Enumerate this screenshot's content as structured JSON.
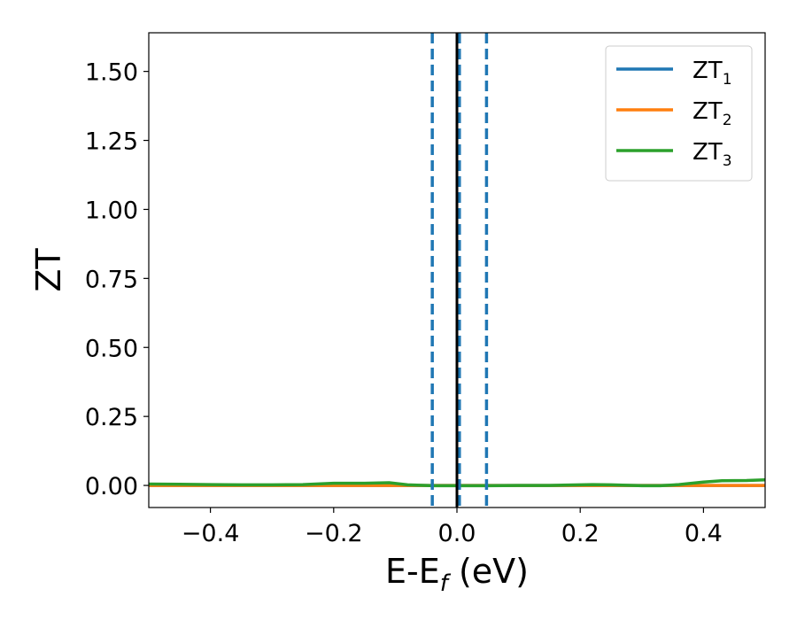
{
  "chart_data": {
    "type": "line",
    "xlabel_main": "E-E",
    "xlabel_sub": "f",
    "xlabel_unit": " (eV)",
    "ylabel": "ZT",
    "xlim": [
      -0.5,
      0.5
    ],
    "ylim": [
      -0.08,
      1.64
    ],
    "x_ticks": [
      -0.4,
      -0.2,
      0.0,
      0.2,
      0.4
    ],
    "x_tick_labels": [
      "−0.4",
      "−0.2",
      "0.0",
      "0.2",
      "0.4"
    ],
    "y_ticks": [
      0.0,
      0.25,
      0.5,
      0.75,
      1.0,
      1.25,
      1.5
    ],
    "y_tick_labels": [
      "0.00",
      "0.25",
      "0.50",
      "0.75",
      "1.00",
      "1.25",
      "1.50"
    ],
    "grid": false,
    "legend_position": "top-right",
    "series": [
      {
        "name": "ZT",
        "name_sub": "1",
        "color": "#1f77b4",
        "x": [
          -0.5,
          -0.4,
          -0.3,
          -0.2,
          -0.1,
          0.0,
          0.1,
          0.2,
          0.3,
          0.4,
          0.5
        ],
        "y": [
          0,
          0,
          0,
          0,
          0,
          0,
          0,
          0,
          0,
          0,
          0
        ]
      },
      {
        "name": "ZT",
        "name_sub": "2",
        "color": "#ff7f0e",
        "x": [
          -0.5,
          -0.4,
          -0.3,
          -0.2,
          -0.1,
          0.0,
          0.1,
          0.2,
          0.3,
          0.4,
          0.5
        ],
        "y": [
          0,
          0,
          0,
          0,
          0,
          0,
          0,
          0,
          0,
          0,
          0
        ]
      },
      {
        "name": "ZT",
        "name_sub": "3",
        "color": "#2ca02c",
        "x": [
          -0.5,
          -0.45,
          -0.4,
          -0.35,
          -0.3,
          -0.25,
          -0.2,
          -0.15,
          -0.11,
          -0.08,
          -0.04,
          0.0,
          0.05,
          0.1,
          0.15,
          0.2,
          0.22,
          0.25,
          0.3,
          0.33,
          0.36,
          0.4,
          0.43,
          0.47,
          0.5
        ],
        "y": [
          0.005,
          0.004,
          0.003,
          0.002,
          0.002,
          0.003,
          0.008,
          0.008,
          0.01,
          0.002,
          -0.001,
          -0.001,
          -0.001,
          0.0,
          0.0,
          0.002,
          0.003,
          0.002,
          -0.001,
          -0.001,
          0.003,
          0.012,
          0.017,
          0.018,
          0.02
        ]
      }
    ],
    "vertical_lines": [
      {
        "x": -0.04,
        "style": "dashed",
        "color": "#1f77b4"
      },
      {
        "x": 0.048,
        "style": "dashed",
        "color": "#1f77b4"
      },
      {
        "x": 0.004,
        "style": "dashed",
        "color": "#1f77b4"
      },
      {
        "x": 0.0,
        "style": "solid",
        "color": "#000000"
      }
    ]
  }
}
